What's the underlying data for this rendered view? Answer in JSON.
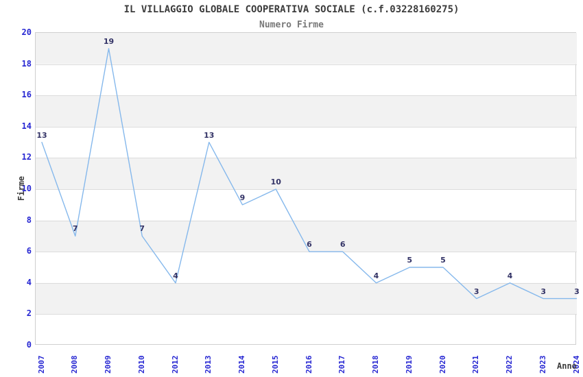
{
  "chart_data": {
    "type": "line",
    "title": "IL VILLAGGIO GLOBALE COOPERATIVA SOCIALE (c.f.03228160275)",
    "subtitle": "Numero Firme",
    "xlabel": "Anno",
    "ylabel": "Firme",
    "categories": [
      "2007",
      "2008",
      "2009",
      "2010",
      "2012",
      "2013",
      "2014",
      "2015",
      "2016",
      "2017",
      "2018",
      "2019",
      "2020",
      "2021",
      "2022",
      "2023",
      "2024"
    ],
    "values": [
      13,
      7,
      19,
      7,
      4,
      13,
      9,
      10,
      6,
      6,
      4,
      5,
      5,
      3,
      4,
      3,
      3
    ],
    "ylim": [
      0,
      20
    ],
    "ytick_step": 2,
    "yticks": [
      0,
      2,
      4,
      6,
      8,
      10,
      12,
      14,
      16,
      18,
      20
    ],
    "grid": "alternating-horizontal-bands",
    "gray_bands": [
      [
        2,
        4
      ],
      [
        6,
        8
      ],
      [
        10,
        12
      ],
      [
        14,
        16
      ],
      [
        18,
        20
      ]
    ],
    "legend": "none",
    "point_labels_visible": true,
    "x_tick_rotation_deg": 90,
    "colors": {
      "line": "#85b8ec",
      "tick_label": "#2626d2",
      "point_label": "#333366",
      "band_fill": "#f2f2f2",
      "grid_line": "#dcdcdc",
      "plot_border": "#cfcfcf",
      "title": "#3c3c3c",
      "subtitle": "#787878",
      "axis_label": "#3c3c3c",
      "background": "#ffffff"
    }
  }
}
